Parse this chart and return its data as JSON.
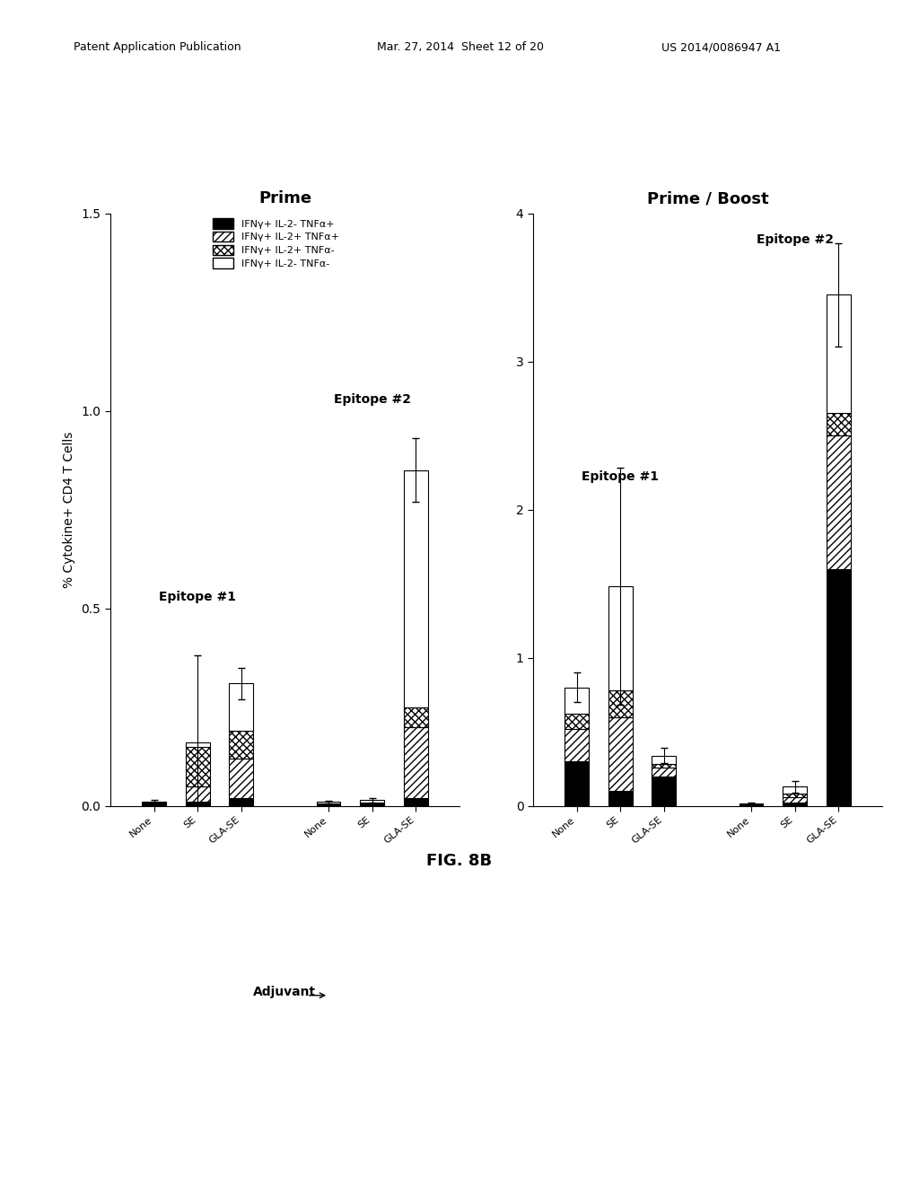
{
  "title_left": "Prime",
  "title_right": "Prime / Boost",
  "ylabel": "% Cytokine+ CD4 T Cells",
  "xlabel": "Adjuvant",
  "fig_label": "FIG. 8B",
  "patent_header": "Patent Application Publication    Mar. 27, 2014  Sheet 12 of 20    US 2014/0086947 A1",
  "legend_labels": [
    "IFNγ+ IL-2- TNFα+",
    "IFNγ+ IL-2+ TNFα+",
    "IFNγ+ IL-2+ TNFα-",
    "IFNγ+ IL-2- TNFα-"
  ],
  "prime": {
    "groups": [
      "Epitope #1",
      "Epitope #2"
    ],
    "xticklabels": [
      "None",
      "SE",
      "GLA-SE",
      "None",
      "SE",
      "GLA-SE"
    ],
    "ylim": [
      0,
      1.5
    ],
    "yticks": [
      0.0,
      0.5,
      1.0,
      1.5
    ],
    "bars": {
      "ep1_none": [
        0.005,
        0.002,
        0.001,
        0.003
      ],
      "ep1_se": [
        0.01,
        0.04,
        0.1,
        0.01
      ],
      "ep1_glase": [
        0.02,
        0.1,
        0.07,
        0.12
      ],
      "ep2_none": [
        0.003,
        0.002,
        0.002,
        0.003
      ],
      "ep2_se": [
        0.003,
        0.003,
        0.003,
        0.005
      ],
      "ep2_glase": [
        0.02,
        0.18,
        0.05,
        0.6
      ]
    },
    "errors": {
      "ep1_none": 0.005,
      "ep1_se": 0.22,
      "ep1_glase": 0.04,
      "ep2_none": 0.003,
      "ep2_se": 0.005,
      "ep2_glase": 0.08
    }
  },
  "boost": {
    "groups": [
      "Epitope #1",
      "Epitope #2"
    ],
    "xticklabels": [
      "None",
      "SE",
      "GLA-SE",
      "None",
      "SE",
      "GLA-SE"
    ],
    "ylim": [
      0,
      4
    ],
    "yticks": [
      0,
      1,
      2,
      3,
      4
    ],
    "bars": {
      "ep1_none": [
        0.3,
        0.22,
        0.1,
        0.18
      ],
      "ep1_se": [
        0.1,
        0.5,
        0.18,
        0.7
      ],
      "ep1_glase": [
        0.2,
        0.06,
        0.02,
        0.06
      ],
      "ep2_none": [
        0.005,
        0.003,
        0.003,
        0.003
      ],
      "ep2_se": [
        0.02,
        0.04,
        0.02,
        0.05
      ],
      "ep2_glase": [
        1.6,
        0.9,
        0.15,
        0.8
      ]
    },
    "errors": {
      "ep1_none": 0.1,
      "ep1_se": 0.8,
      "ep1_glase": 0.05,
      "ep2_none": 0.01,
      "ep2_se": 0.04,
      "ep2_glase": 0.35
    }
  }
}
